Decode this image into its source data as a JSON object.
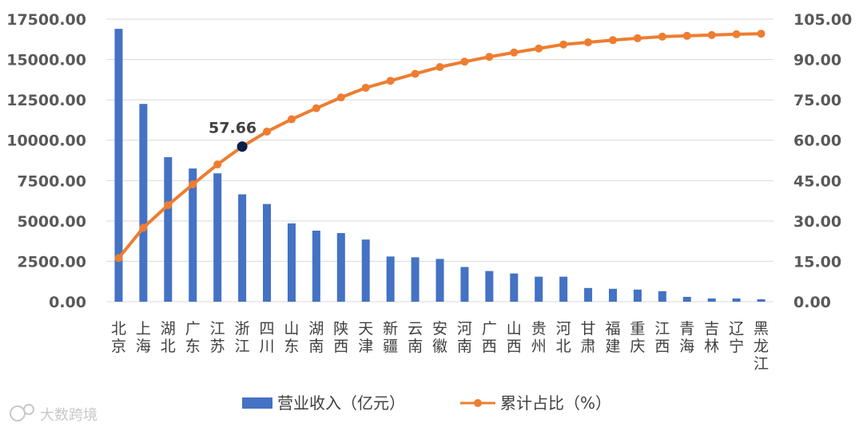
{
  "chart_data": {
    "type": "bar",
    "categories": [
      "北京",
      "上海",
      "湖北",
      "广东",
      "江苏",
      "浙江",
      "四川",
      "山东",
      "湖南",
      "陕西",
      "天津",
      "新疆",
      "云南",
      "安徽",
      "河南",
      "广西",
      "山西",
      "贵州",
      "河北",
      "甘肃",
      "福建",
      "重庆",
      "江西",
      "青海",
      "吉林",
      "辽宁",
      "黑龙江"
    ],
    "series": [
      {
        "name": "营业收入（亿元）",
        "type": "bar",
        "axis": "left",
        "color": "#4472c4",
        "values": [
          16900,
          12250,
          8950,
          8250,
          7950,
          6650,
          6050,
          4850,
          4400,
          4250,
          3850,
          2800,
          2750,
          2650,
          2150,
          1900,
          1750,
          1550,
          1550,
          850,
          800,
          750,
          650,
          300,
          200,
          200,
          150
        ]
      },
      {
        "name": "累计占比（%）",
        "type": "line",
        "axis": "right",
        "color": "#ed7d31",
        "values": [
          16.2,
          27.5,
          35.9,
          43.6,
          51.0,
          57.66,
          63.2,
          67.8,
          71.9,
          75.9,
          79.5,
          82.1,
          84.7,
          87.2,
          89.2,
          91.0,
          92.6,
          94.1,
          95.6,
          96.4,
          97.2,
          97.9,
          98.5,
          98.8,
          99.1,
          99.4,
          99.6
        ]
      }
    ],
    "y_left": {
      "ylim": [
        0,
        17500
      ],
      "ticks": [
        "0.00",
        "2500.00",
        "5000.00",
        "7500.00",
        "10000.00",
        "12500.00",
        "15000.00",
        "17500.00"
      ]
    },
    "y_right": {
      "ylim": [
        0,
        105
      ],
      "ticks": [
        "0.00",
        "15.00",
        "30.00",
        "45.00",
        "60.00",
        "75.00",
        "90.00",
        "105.00"
      ]
    },
    "annotation": {
      "label": "57.66",
      "category_index": 5,
      "highlight_color": "#0b1f4d"
    },
    "legend": {
      "position": "bottom"
    },
    "grid": true
  },
  "watermark": {
    "text": "大数跨境"
  }
}
